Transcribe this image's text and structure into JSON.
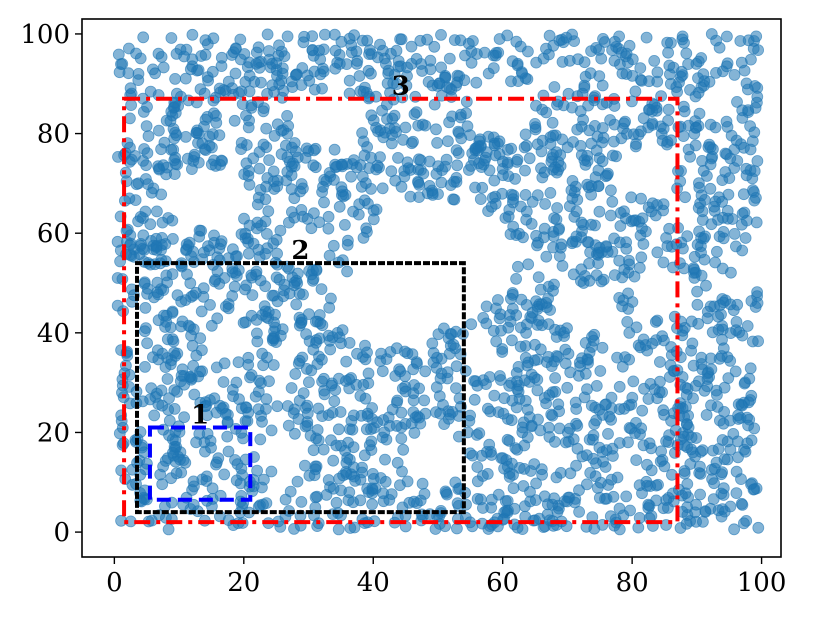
{
  "chart_data": {
    "type": "scatter",
    "title": "",
    "xlabel": "",
    "ylabel": "",
    "xlim": [
      -5,
      103
    ],
    "ylim": [
      -5,
      103
    ],
    "x_ticks": [
      0,
      20,
      40,
      60,
      80,
      100
    ],
    "y_ticks": [
      0,
      20,
      40,
      60,
      80,
      100
    ],
    "x_tick_labels": [
      "0",
      "20",
      "40",
      "60",
      "80",
      "100"
    ],
    "y_tick_labels": [
      "0",
      "20",
      "40",
      "60",
      "80",
      "100"
    ],
    "grid": false,
    "legend": "none",
    "point_color": "#1f77b4",
    "point_count_approx": 2500,
    "empty_regions": [
      {
        "cx": 50,
        "cy": 55,
        "r": 12
      },
      {
        "cx": 43,
        "cy": 46,
        "r": 9
      },
      {
        "cx": 33,
        "cy": 83,
        "r": 6
      },
      {
        "cx": 60,
        "cy": 85,
        "r": 5
      },
      {
        "cx": 14,
        "cy": 67,
        "r": 6
      },
      {
        "cx": 29,
        "cy": 57,
        "r": 4
      },
      {
        "cx": 50,
        "cy": 15,
        "r": 5
      },
      {
        "cx": 26,
        "cy": 16,
        "r": 4
      },
      {
        "cx": 18,
        "cy": 38,
        "r": 4
      },
      {
        "cx": 73,
        "cy": 45,
        "r": 5
      },
      {
        "cx": 82,
        "cy": 72,
        "r": 5
      },
      {
        "cx": 85,
        "cy": 48,
        "r": 5
      },
      {
        "cx": 57,
        "cy": 34,
        "r": 3
      },
      {
        "cx": 95,
        "cy": 55,
        "r": 2
      },
      {
        "cx": 68,
        "cy": 15,
        "r": 3
      }
    ],
    "boxes": [
      {
        "label": "1",
        "x0": 5.5,
        "y0": 6.5,
        "x1": 21,
        "y1": 21,
        "color": "#0000ff",
        "dash": "dashed"
      },
      {
        "label": "2",
        "x0": 3.5,
        "y0": 4,
        "x1": 54,
        "y1": 54,
        "color": "#000000",
        "dash": "dotted"
      },
      {
        "label": "3",
        "x0": 1.5,
        "y0": 2,
        "x1": 87,
        "y1": 87,
        "color": "#ff0000",
        "dash": "dashdot"
      }
    ]
  }
}
